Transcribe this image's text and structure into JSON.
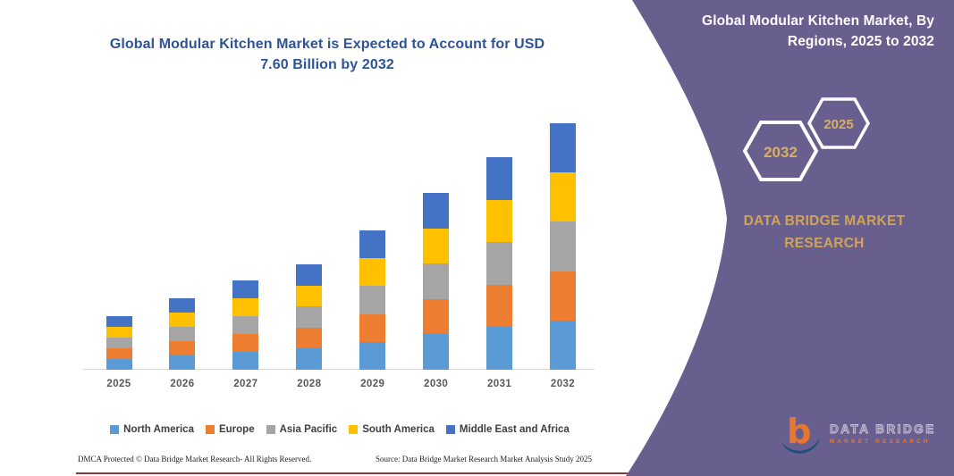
{
  "chart": {
    "title_line1": "Global Modular Kitchen Market is Expected to Account for USD",
    "title_line2": "7.60 Billion by 2032"
  },
  "chart_data": {
    "type": "bar",
    "stacked": true,
    "categories": [
      "2025",
      "2026",
      "2027",
      "2028",
      "2029",
      "2030",
      "2031",
      "2032"
    ],
    "series": [
      {
        "name": "North America",
        "color": "#5B9BD5",
        "values": [
          0.33,
          0.44,
          0.55,
          0.65,
          0.86,
          1.09,
          1.31,
          1.52
        ]
      },
      {
        "name": "Europe",
        "color": "#ED7D31",
        "values": [
          0.33,
          0.44,
          0.55,
          0.65,
          0.86,
          1.09,
          1.31,
          1.52
        ]
      },
      {
        "name": "Asia Pacific",
        "color": "#A5A5A5",
        "values": [
          0.33,
          0.44,
          0.55,
          0.65,
          0.86,
          1.09,
          1.31,
          1.52
        ]
      },
      {
        "name": "South America",
        "color": "#FFC000",
        "values": [
          0.33,
          0.44,
          0.55,
          0.65,
          0.86,
          1.09,
          1.31,
          1.52
        ]
      },
      {
        "name": "Middle East and Africa",
        "color": "#4472C4",
        "values": [
          0.33,
          0.44,
          0.55,
          0.65,
          0.86,
          1.09,
          1.31,
          1.52
        ]
      }
    ],
    "totals_estimated_usd_billion": [
      1.65,
      2.2,
      2.75,
      3.25,
      4.3,
      5.45,
      6.55,
      7.6
    ],
    "title": "Global Modular Kitchen Market is Expected to Account for USD 7.60 Billion by 2032",
    "xlabel": "",
    "ylabel": "",
    "ylim": [
      0,
      8
    ],
    "grid": false,
    "legend_position": "bottom",
    "unit": "USD Billion"
  },
  "footer": {
    "dmca": "DMCA Protected © Data Bridge Market Research-  All Rights Reserved.",
    "source": "Source: Data Bridge Market Research  Market Analysis Study 2025"
  },
  "side_panel": {
    "title": "Global Modular Kitchen Market, By Regions, 2025 to 2032",
    "hexagons": {
      "back_year": "2032",
      "front_year": "2025"
    },
    "brand_text": "DATA BRIDGE MARKET RESEARCH",
    "logo": {
      "monogram": "b",
      "name": "DATA BRIDGE",
      "tagline": "MARKET RESEARCH"
    }
  },
  "colors": {
    "panel_purple": "#695f8f",
    "title_blue": "#2f5496",
    "gold_text": "#d0a355",
    "hex_year_gold": "#d9af62",
    "bottom_rule_maroon": "#8b3a3a",
    "logo_orange": "#e8762d",
    "logo_navy": "#1f4e79",
    "axis_gray": "#d9d9d9"
  }
}
